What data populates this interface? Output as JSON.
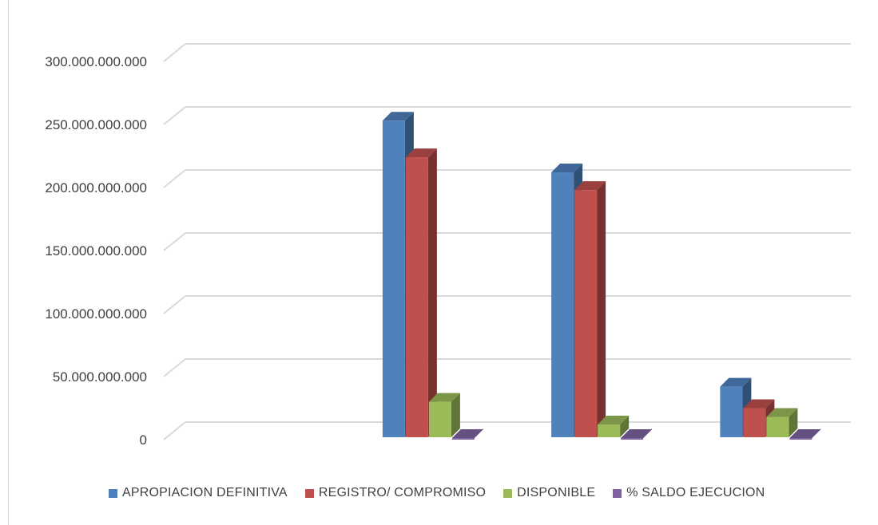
{
  "chart_data": {
    "type": "bar",
    "style": "3d-clustered-column",
    "categories": [
      "",
      "",
      "",
      ""
    ],
    "series": [
      {
        "name": "APROPIACION DEFINITIVA",
        "color": "#4F81BD",
        "values": [
          0,
          253000000000,
          212000000000,
          42000000000
        ]
      },
      {
        "name": "REGISTRO/ COMPROMISO",
        "color": "#C0504D",
        "values": [
          0,
          224000000000,
          198000000000,
          25000000000
        ]
      },
      {
        "name": "DISPONIBLE",
        "color": "#9BBB59",
        "values": [
          0,
          30000000000,
          12000000000,
          18000000000
        ]
      },
      {
        "name": "% SALDO EJECUCION",
        "color": "#8064A2",
        "values": [
          0,
          0,
          0,
          0
        ]
      }
    ],
    "ylim": [
      0,
      300000000000
    ],
    "yticks": [
      0,
      50000000000,
      100000000000,
      150000000000,
      200000000000,
      250000000000,
      300000000000
    ],
    "ytick_labels": [
      "0",
      "50.000.000.000",
      "100.000.000.000",
      "150.000.000.000",
      "200.000.000.000",
      "250.000.000.000",
      "300.000.000.000"
    ],
    "grid": true,
    "legend_position": "bottom"
  }
}
